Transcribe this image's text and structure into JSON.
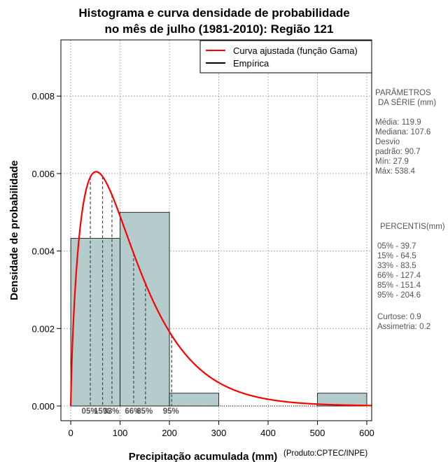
{
  "chart_data": {
    "type": "bar",
    "title_line1": "Histograma e curva densidade de probabilidade",
    "title_line2": "no mês de julho (1981-2010): Região 121",
    "xlabel": "Precipitação acumulada (mm)",
    "ylabel": "Densidade de probabilidade",
    "credit": "(Produto:CPTEC/INPE)",
    "xlim": [
      -20,
      610
    ],
    "ylim": [
      -0.00038,
      0.00945
    ],
    "x_ticks": [
      0,
      100,
      200,
      300,
      400,
      500,
      600
    ],
    "x_tick_labels": [
      "0",
      "100",
      "200",
      "300",
      "400",
      "500",
      "600"
    ],
    "y_ticks": [
      0,
      0.002,
      0.004,
      0.006,
      0.008
    ],
    "y_tick_labels": [
      "0.000",
      "0.002",
      "0.004",
      "0.006",
      "0.008"
    ],
    "grid": true,
    "histogram": [
      {
        "x0": 0,
        "x1": 100,
        "density": 0.00433
      },
      {
        "x0": 100,
        "x1": 200,
        "density": 0.005
      },
      {
        "x0": 200,
        "x1": 300,
        "density": 0.00033
      },
      {
        "x0": 300,
        "x1": 400,
        "density": 0
      },
      {
        "x0": 400,
        "x1": 500,
        "density": 0
      },
      {
        "x0": 500,
        "x1": 600,
        "density": 0.00033
      }
    ],
    "fitted_curve": {
      "name": "Curva ajustada (função Gama)",
      "color": "#ff0000",
      "distribution": "gamma",
      "shape": 1.75,
      "scale": 68.5
    },
    "empirical_name": "Empírica",
    "bar_color": "#b4cccc",
    "percentile_lines": [
      {
        "label": "05%",
        "value": 39.7
      },
      {
        "label": "15%",
        "value": 64.5
      },
      {
        "label": "33%",
        "value": 83.5
      },
      {
        "label": "66%",
        "value": 127.4
      },
      {
        "label": "85%",
        "value": 151.4
      },
      {
        "label": "95%",
        "value": 204.6
      }
    ],
    "legend_position": "top-right"
  },
  "side_panel": {
    "params_heading_1": "PARÂMETROS",
    "params_heading_2": "DA SÉRIE (mm)",
    "media": "Média:  119.9",
    "mediana": "Mediana:  107.6",
    "desvio_1": "Desvio",
    "desvio_2": "padrão:  90.7",
    "min": "Mín:  27.9",
    "max": "Máx:  538.4",
    "percentis_heading": "PERCENTIS(mm)",
    "p05": "05% -   39.7",
    "p15": "15% -   64.5",
    "p33": "33% -   83.5",
    "p66": "66% -   127.4",
    "p85": "85% -   151.4",
    "p95": "95% -   204.6",
    "curtose": "Curtose:  0.9",
    "assimetria": "Assimetria:  0.2"
  }
}
